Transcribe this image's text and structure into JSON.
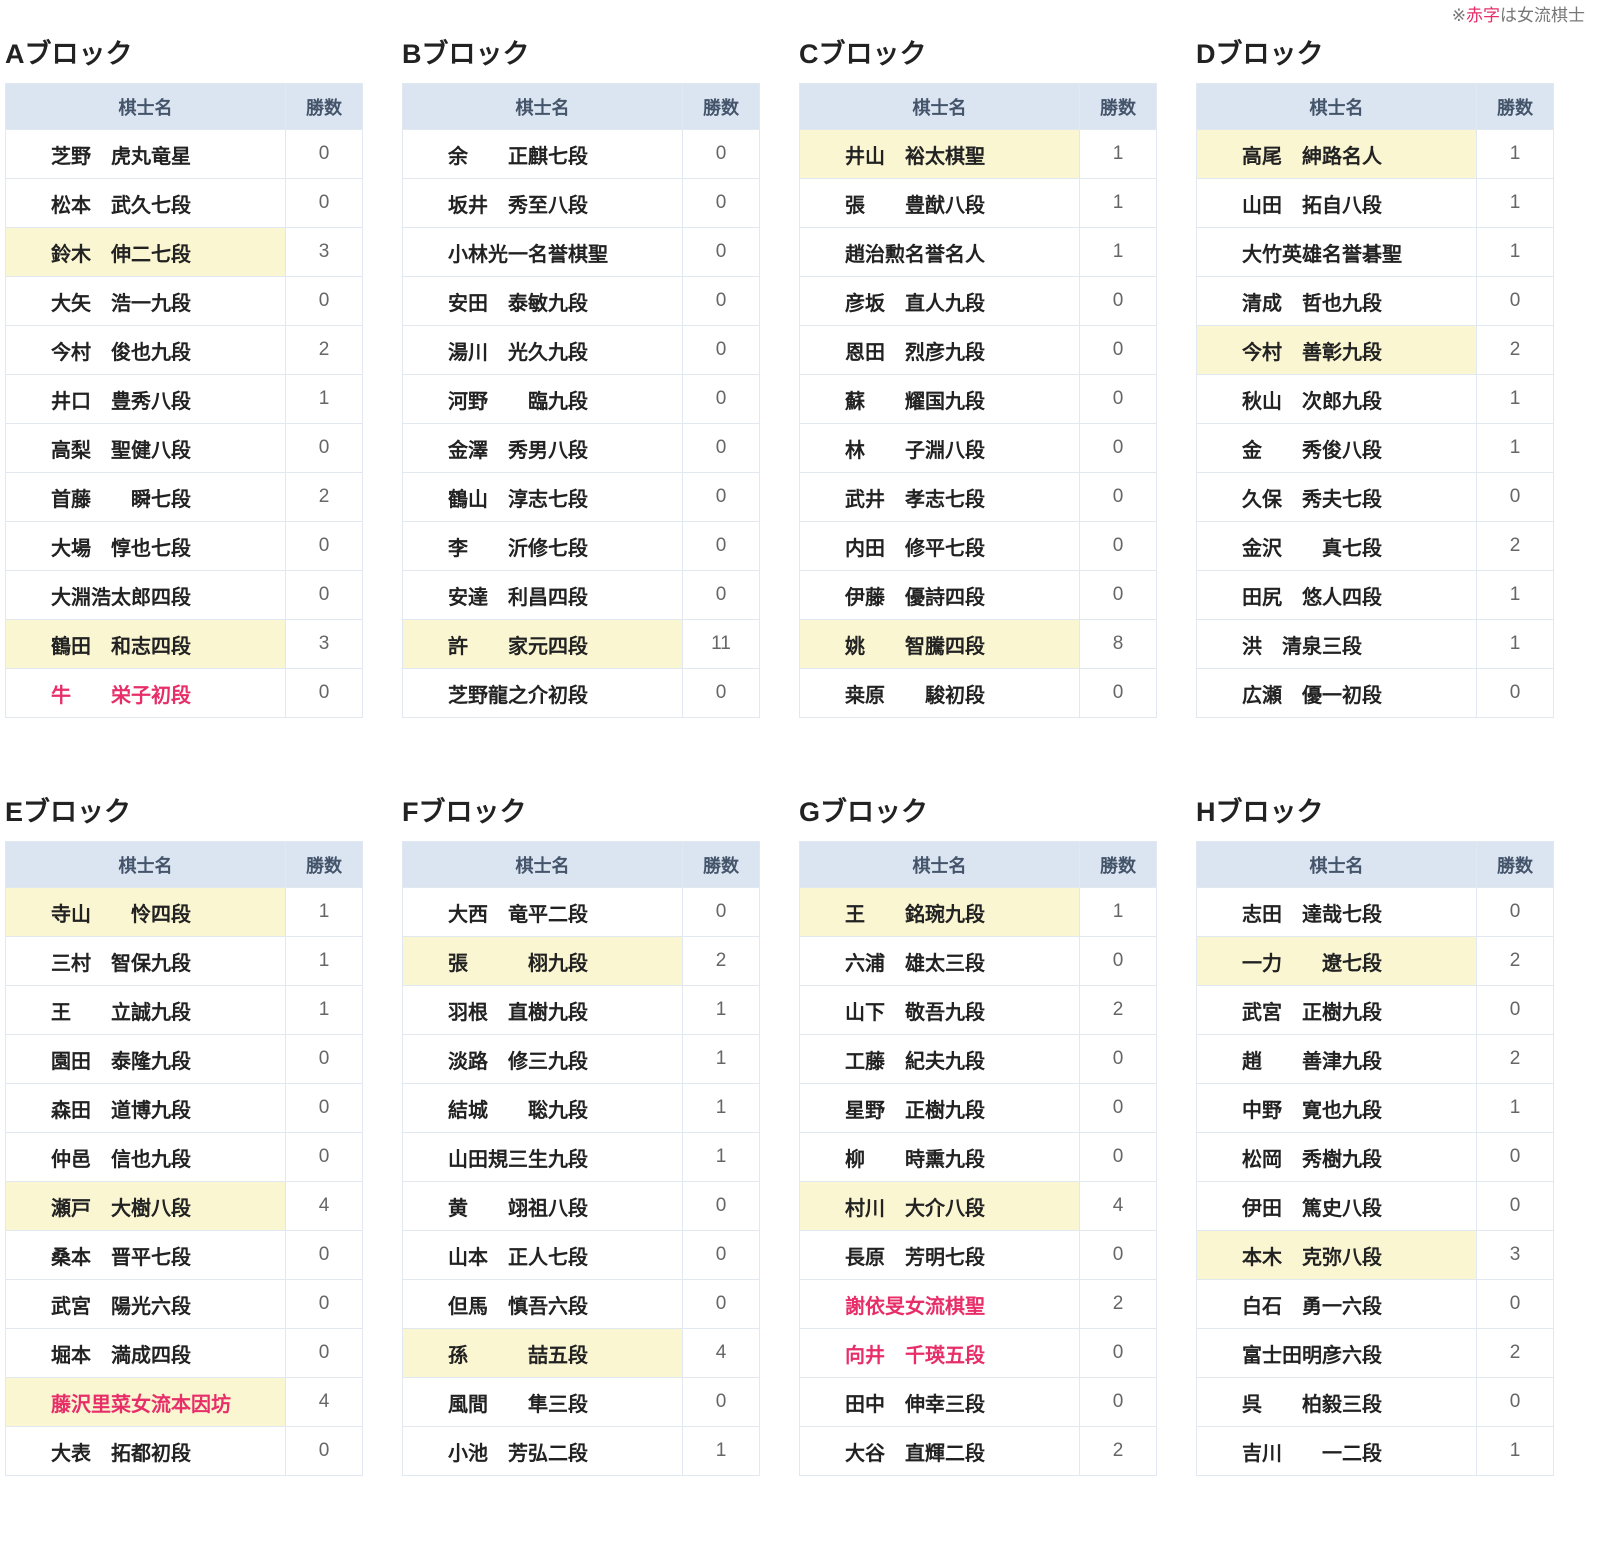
{
  "legend": {
    "prefix": "※",
    "red": "赤字",
    "suffix": "は女流棋士"
  },
  "table_headers": {
    "name": "棋士名",
    "wins": "勝数"
  },
  "colors": {
    "header_bg": "#dbe5f1",
    "header_text": "#44546a",
    "highlight_yellow": "#faf6d2",
    "female_red": "#e72e68",
    "wins_text": "#666666",
    "border": "#e2e8ef"
  },
  "blocks": [
    {
      "title": "Aブロック",
      "players": [
        {
          "name": "芝野　虎丸竜星",
          "wins": "0",
          "highlight": false,
          "female": false
        },
        {
          "name": "松本　武久七段",
          "wins": "0",
          "highlight": false,
          "female": false
        },
        {
          "name": "鈴木　伸二七段",
          "wins": "3",
          "highlight": true,
          "female": false
        },
        {
          "name": "大矢　浩一九段",
          "wins": "0",
          "highlight": false,
          "female": false
        },
        {
          "name": "今村　俊也九段",
          "wins": "2",
          "highlight": false,
          "female": false
        },
        {
          "name": "井口　豊秀八段",
          "wins": "1",
          "highlight": false,
          "female": false
        },
        {
          "name": "高梨　聖健八段",
          "wins": "0",
          "highlight": false,
          "female": false
        },
        {
          "name": "首藤　　瞬七段",
          "wins": "2",
          "highlight": false,
          "female": false
        },
        {
          "name": "大場　惇也七段",
          "wins": "0",
          "highlight": false,
          "female": false
        },
        {
          "name": "大淵浩太郎四段",
          "wins": "0",
          "highlight": false,
          "female": false
        },
        {
          "name": "鶴田　和志四段",
          "wins": "3",
          "highlight": true,
          "female": false
        },
        {
          "name": "牛　　栄子初段",
          "wins": "0",
          "highlight": false,
          "female": true
        }
      ]
    },
    {
      "title": "Bブロック",
      "players": [
        {
          "name": "余　　正麒七段",
          "wins": "0",
          "highlight": false,
          "female": false
        },
        {
          "name": "坂井　秀至八段",
          "wins": "0",
          "highlight": false,
          "female": false
        },
        {
          "name": "小林光一名誉棋聖",
          "wins": "0",
          "highlight": false,
          "female": false
        },
        {
          "name": "安田　泰敏九段",
          "wins": "0",
          "highlight": false,
          "female": false
        },
        {
          "name": "湯川　光久九段",
          "wins": "0",
          "highlight": false,
          "female": false
        },
        {
          "name": "河野　　臨九段",
          "wins": "0",
          "highlight": false,
          "female": false
        },
        {
          "name": "金澤　秀男八段",
          "wins": "0",
          "highlight": false,
          "female": false
        },
        {
          "name": "鶴山　淳志七段",
          "wins": "0",
          "highlight": false,
          "female": false
        },
        {
          "name": "李　　沂修七段",
          "wins": "0",
          "highlight": false,
          "female": false
        },
        {
          "name": "安達　利昌四段",
          "wins": "0",
          "highlight": false,
          "female": false
        },
        {
          "name": "許　　家元四段",
          "wins": "11",
          "highlight": true,
          "female": false
        },
        {
          "name": "芝野龍之介初段",
          "wins": "0",
          "highlight": false,
          "female": false
        }
      ]
    },
    {
      "title": "Cブロック",
      "players": [
        {
          "name": "井山　裕太棋聖",
          "wins": "1",
          "highlight": true,
          "female": false
        },
        {
          "name": "張　　豊猷八段",
          "wins": "1",
          "highlight": false,
          "female": false
        },
        {
          "name": "趙治勲名誉名人",
          "wins": "1",
          "highlight": false,
          "female": false
        },
        {
          "name": "彦坂　直人九段",
          "wins": "0",
          "highlight": false,
          "female": false
        },
        {
          "name": "恩田　烈彦九段",
          "wins": "0",
          "highlight": false,
          "female": false
        },
        {
          "name": "蘇　　耀国九段",
          "wins": "0",
          "highlight": false,
          "female": false
        },
        {
          "name": "林　　子淵八段",
          "wins": "0",
          "highlight": false,
          "female": false
        },
        {
          "name": "武井　孝志七段",
          "wins": "0",
          "highlight": false,
          "female": false
        },
        {
          "name": "内田　修平七段",
          "wins": "0",
          "highlight": false,
          "female": false
        },
        {
          "name": "伊藤　優詩四段",
          "wins": "0",
          "highlight": false,
          "female": false
        },
        {
          "name": "姚　　智騰四段",
          "wins": "8",
          "highlight": true,
          "female": false
        },
        {
          "name": "桒原　　駿初段",
          "wins": "0",
          "highlight": false,
          "female": false
        }
      ]
    },
    {
      "title": "Dブロック",
      "players": [
        {
          "name": "高尾　紳路名人",
          "wins": "1",
          "highlight": true,
          "female": false
        },
        {
          "name": "山田　拓自八段",
          "wins": "1",
          "highlight": false,
          "female": false
        },
        {
          "name": "大竹英雄名誉碁聖",
          "wins": "1",
          "highlight": false,
          "female": false
        },
        {
          "name": "清成　哲也九段",
          "wins": "0",
          "highlight": false,
          "female": false
        },
        {
          "name": "今村　善彰九段",
          "wins": "2",
          "highlight": true,
          "female": false
        },
        {
          "name": "秋山　次郎九段",
          "wins": "1",
          "highlight": false,
          "female": false
        },
        {
          "name": "金　　秀俊八段",
          "wins": "1",
          "highlight": false,
          "female": false
        },
        {
          "name": "久保　秀夫七段",
          "wins": "0",
          "highlight": false,
          "female": false
        },
        {
          "name": "金沢　　真七段",
          "wins": "2",
          "highlight": false,
          "female": false
        },
        {
          "name": "田尻　悠人四段",
          "wins": "1",
          "highlight": false,
          "female": false
        },
        {
          "name": "洪　清泉三段",
          "wins": "1",
          "highlight": false,
          "female": false
        },
        {
          "name": "広瀬　優一初段",
          "wins": "0",
          "highlight": false,
          "female": false
        }
      ]
    },
    {
      "title": "Eブロック",
      "players": [
        {
          "name": "寺山　　怜四段",
          "wins": "1",
          "highlight": true,
          "female": false
        },
        {
          "name": "三村　智保九段",
          "wins": "1",
          "highlight": false,
          "female": false
        },
        {
          "name": "王　　立誠九段",
          "wins": "1",
          "highlight": false,
          "female": false
        },
        {
          "name": "園田　泰隆九段",
          "wins": "0",
          "highlight": false,
          "female": false
        },
        {
          "name": "森田　道博九段",
          "wins": "0",
          "highlight": false,
          "female": false
        },
        {
          "name": "仲邑　信也九段",
          "wins": "0",
          "highlight": false,
          "female": false
        },
        {
          "name": "瀬戸　大樹八段",
          "wins": "4",
          "highlight": true,
          "female": false
        },
        {
          "name": "桑本　晋平七段",
          "wins": "0",
          "highlight": false,
          "female": false
        },
        {
          "name": "武宮　陽光六段",
          "wins": "0",
          "highlight": false,
          "female": false
        },
        {
          "name": "堀本　満成四段",
          "wins": "0",
          "highlight": false,
          "female": false
        },
        {
          "name": "藤沢里菜女流本因坊",
          "wins": "4",
          "highlight": true,
          "female": true
        },
        {
          "name": "大表　拓都初段",
          "wins": "0",
          "highlight": false,
          "female": false
        }
      ]
    },
    {
      "title": "Fブロック",
      "players": [
        {
          "name": "大西　竜平二段",
          "wins": "0",
          "highlight": false,
          "female": false
        },
        {
          "name": "張　　　栩九段",
          "wins": "2",
          "highlight": true,
          "female": false
        },
        {
          "name": "羽根　直樹九段",
          "wins": "1",
          "highlight": false,
          "female": false
        },
        {
          "name": "淡路　修三九段",
          "wins": "1",
          "highlight": false,
          "female": false
        },
        {
          "name": "結城　　聡九段",
          "wins": "1",
          "highlight": false,
          "female": false
        },
        {
          "name": "山田規三生九段",
          "wins": "1",
          "highlight": false,
          "female": false
        },
        {
          "name": "黄　　翊祖八段",
          "wins": "0",
          "highlight": false,
          "female": false
        },
        {
          "name": "山本　正人七段",
          "wins": "0",
          "highlight": false,
          "female": false
        },
        {
          "name": "但馬　慎吾六段",
          "wins": "0",
          "highlight": false,
          "female": false
        },
        {
          "name": "孫　　　喆五段",
          "wins": "4",
          "highlight": true,
          "female": false
        },
        {
          "name": "風間　　隼三段",
          "wins": "0",
          "highlight": false,
          "female": false
        },
        {
          "name": "小池　芳弘二段",
          "wins": "1",
          "highlight": false,
          "female": false
        }
      ]
    },
    {
      "title": "Gブロック",
      "players": [
        {
          "name": "王　　銘琬九段",
          "wins": "1",
          "highlight": true,
          "female": false
        },
        {
          "name": "六浦　雄太三段",
          "wins": "0",
          "highlight": false,
          "female": false
        },
        {
          "name": "山下　敬吾九段",
          "wins": "2",
          "highlight": false,
          "female": false
        },
        {
          "name": "工藤　紀夫九段",
          "wins": "0",
          "highlight": false,
          "female": false
        },
        {
          "name": "星野　正樹九段",
          "wins": "0",
          "highlight": false,
          "female": false
        },
        {
          "name": "柳　　時熏九段",
          "wins": "0",
          "highlight": false,
          "female": false
        },
        {
          "name": "村川　大介八段",
          "wins": "4",
          "highlight": true,
          "female": false
        },
        {
          "name": "長原　芳明七段",
          "wins": "0",
          "highlight": false,
          "female": false
        },
        {
          "name": "謝依旻女流棋聖",
          "wins": "2",
          "highlight": false,
          "female": true
        },
        {
          "name": "向井　千瑛五段",
          "wins": "0",
          "highlight": false,
          "female": true
        },
        {
          "name": "田中　伸幸三段",
          "wins": "0",
          "highlight": false,
          "female": false
        },
        {
          "name": "大谷　直輝二段",
          "wins": "2",
          "highlight": false,
          "female": false
        }
      ]
    },
    {
      "title": "Hブロック",
      "players": [
        {
          "name": "志田　達哉七段",
          "wins": "0",
          "highlight": false,
          "female": false
        },
        {
          "name": "一力　　遼七段",
          "wins": "2",
          "highlight": true,
          "female": false
        },
        {
          "name": "武宮　正樹九段",
          "wins": "0",
          "highlight": false,
          "female": false
        },
        {
          "name": "趙　　善津九段",
          "wins": "2",
          "highlight": false,
          "female": false
        },
        {
          "name": "中野　寛也九段",
          "wins": "1",
          "highlight": false,
          "female": false
        },
        {
          "name": "松岡　秀樹九段",
          "wins": "0",
          "highlight": false,
          "female": false
        },
        {
          "name": "伊田　篤史八段",
          "wins": "0",
          "highlight": false,
          "female": false
        },
        {
          "name": "本木　克弥八段",
          "wins": "3",
          "highlight": true,
          "female": false
        },
        {
          "name": "白石　勇一六段",
          "wins": "0",
          "highlight": false,
          "female": false
        },
        {
          "name": "富士田明彦六段",
          "wins": "2",
          "highlight": false,
          "female": false
        },
        {
          "name": "呉　　柏毅三段",
          "wins": "0",
          "highlight": false,
          "female": false
        },
        {
          "name": "吉川　　一二段",
          "wins": "1",
          "highlight": false,
          "female": false
        }
      ]
    }
  ]
}
